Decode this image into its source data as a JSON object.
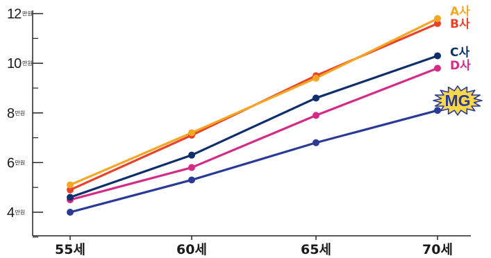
{
  "chart_data": {
    "type": "line",
    "categories": [
      "55세",
      "60세",
      "65세",
      "70세"
    ],
    "y_ticks": [
      {
        "value": 4,
        "label": "4",
        "unit": "만원"
      },
      {
        "value": 6,
        "label": "6",
        "unit": "만원"
      },
      {
        "value": 8,
        "label": "8",
        "unit": "만원"
      },
      {
        "value": 10,
        "label": "10",
        "unit": "만원"
      },
      {
        "value": 12,
        "label": "12",
        "unit": "만원"
      }
    ],
    "ylim": [
      3,
      12.8
    ],
    "grid": false,
    "series": [
      {
        "name": "A사",
        "color": "#f5a623",
        "values": [
          5.1,
          7.2,
          9.4,
          11.8
        ]
      },
      {
        "name": "B사",
        "color": "#e8432a",
        "values": [
          4.9,
          7.1,
          9.5,
          11.6
        ]
      },
      {
        "name": "C사",
        "color": "#0d2f6b",
        "values": [
          4.6,
          6.3,
          8.6,
          10.3
        ]
      },
      {
        "name": "D사",
        "color": "#d42b87",
        "values": [
          4.5,
          5.8,
          7.9,
          9.8
        ]
      },
      {
        "name": "MG",
        "color": "#2b3a97",
        "values": [
          4.0,
          5.3,
          6.8,
          8.1
        ],
        "badge": true,
        "badge_fill": "#fbd84a"
      }
    ]
  }
}
